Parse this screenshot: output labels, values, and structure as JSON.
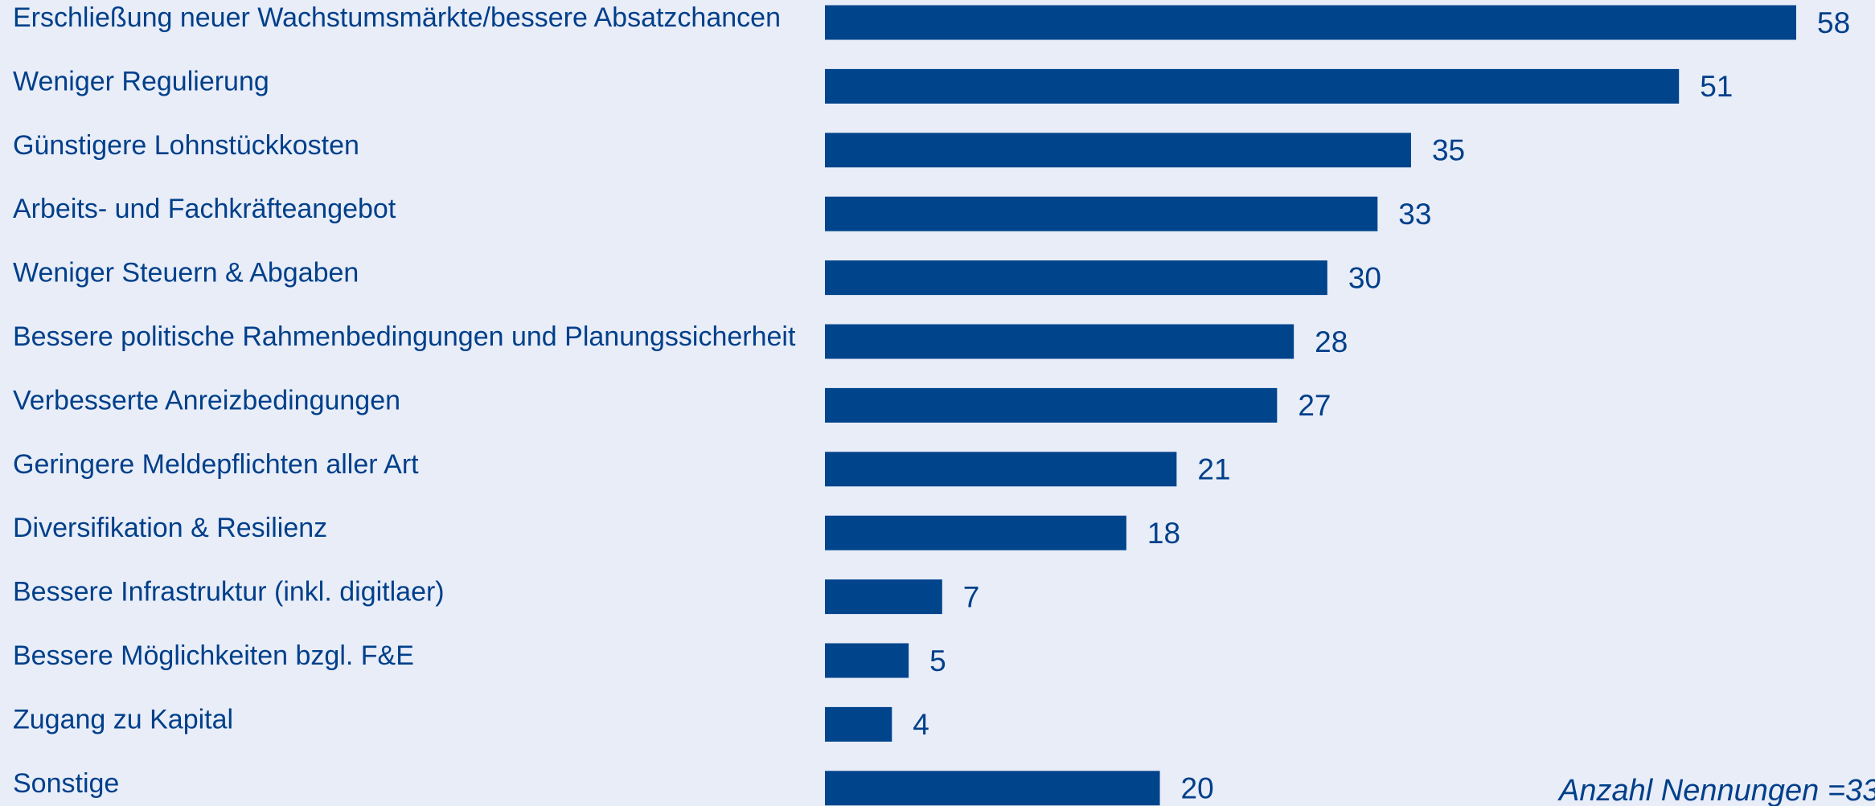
{
  "chart_data": {
    "type": "bar",
    "orientation": "horizontal",
    "categories": [
      "Erschließung neuer Wachstumsmärkte/bessere Absatzchancen",
      "Weniger Regulierung",
      "Günstigere Lohnstückkosten",
      "Arbeits- und Fachkräfteangebot",
      "Weniger Steuern & Abgaben",
      "Bessere politische Rahmenbedingungen und Planungssicherheit",
      "Verbesserte Anreizbedingungen",
      "Geringere Meldepflichten aller Art",
      "Diversifikation & Resilienz",
      "Bessere Infrastruktur (inkl. digitlaer)",
      "Bessere Möglichkeiten bzgl. F&E",
      "Zugang zu Kapital",
      "Sonstige"
    ],
    "values": [
      58,
      51,
      35,
      33,
      30,
      28,
      27,
      21,
      18,
      7,
      5,
      4,
      20
    ],
    "color": "#00448c",
    "annotation": "Anzahl Nennungen =33"
  }
}
